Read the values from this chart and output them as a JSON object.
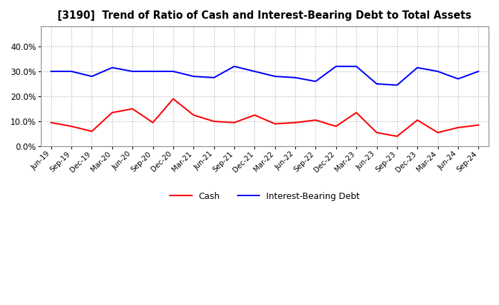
{
  "title": "[3190]  Trend of Ratio of Cash and Interest-Bearing Debt to Total Assets",
  "labels": [
    "Jun-19",
    "Sep-19",
    "Dec-19",
    "Mar-20",
    "Jun-20",
    "Sep-20",
    "Dec-20",
    "Mar-21",
    "Jun-21",
    "Sep-21",
    "Dec-21",
    "Mar-22",
    "Jun-22",
    "Sep-22",
    "Dec-22",
    "Mar-23",
    "Jun-23",
    "Sep-23",
    "Dec-23",
    "Mar-24",
    "Jun-24",
    "Sep-24"
  ],
  "cash": [
    9.5,
    8.0,
    6.0,
    13.5,
    15.0,
    9.5,
    19.0,
    12.5,
    10.0,
    9.5,
    12.5,
    9.0,
    9.5,
    10.5,
    8.0,
    13.5,
    5.5,
    4.0,
    10.5,
    5.5,
    7.5,
    8.5
  ],
  "ibd": [
    30.0,
    30.0,
    28.0,
    31.5,
    30.0,
    30.0,
    30.0,
    28.0,
    27.5,
    32.0,
    30.0,
    28.0,
    27.5,
    26.0,
    32.0,
    32.0,
    25.0,
    24.5,
    31.5,
    30.0,
    27.0,
    30.0
  ],
  "cash_color": "#ff0000",
  "ibd_color": "#0000ff",
  "ylim": [
    0,
    48
  ],
  "yticks": [
    0,
    10,
    20,
    30,
    40
  ],
  "ytick_labels": [
    "0.0%",
    "10.0%",
    "20.0%",
    "30.0%",
    "40.0%"
  ],
  "legend_cash": "Cash",
  "legend_ibd": "Interest-Bearing Debt",
  "bg_color": "#ffffff",
  "plot_bg_color": "#ffffff",
  "grid_color": "#aaaaaa",
  "line_width": 1.5
}
